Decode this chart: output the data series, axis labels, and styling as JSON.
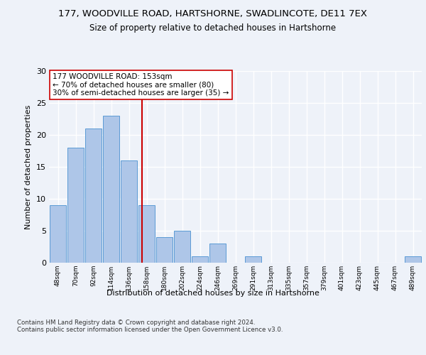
{
  "title1": "177, WOODVILLE ROAD, HARTSHORNE, SWADLINCOTE, DE11 7EX",
  "title2": "Size of property relative to detached houses in Hartshorne",
  "xlabel": "Distribution of detached houses by size in Hartshorne",
  "ylabel": "Number of detached properties",
  "categories": [
    "48sqm",
    "70sqm",
    "92sqm",
    "114sqm",
    "136sqm",
    "158sqm",
    "180sqm",
    "202sqm",
    "224sqm",
    "246sqm",
    "269sqm",
    "291sqm",
    "313sqm",
    "335sqm",
    "357sqm",
    "379sqm",
    "401sqm",
    "423sqm",
    "445sqm",
    "467sqm",
    "489sqm"
  ],
  "values": [
    9,
    18,
    21,
    23,
    16,
    9,
    4,
    5,
    1,
    3,
    0,
    1,
    0,
    0,
    0,
    0,
    0,
    0,
    0,
    0,
    1
  ],
  "bar_color": "#aec6e8",
  "bar_edge_color": "#5b9bd5",
  "reference_line_color": "#cc0000",
  "annotation_text": "177 WOODVILLE ROAD: 153sqm\n← 70% of detached houses are smaller (80)\n30% of semi-detached houses are larger (35) →",
  "annotation_box_color": "#ffffff",
  "annotation_box_edge": "#cc0000",
  "ylim": [
    0,
    30
  ],
  "yticks": [
    0,
    5,
    10,
    15,
    20,
    25,
    30
  ],
  "footer": "Contains HM Land Registry data © Crown copyright and database right 2024.\nContains public sector information licensed under the Open Government Licence v3.0.",
  "background_color": "#eef2f9",
  "grid_color": "#ffffff"
}
